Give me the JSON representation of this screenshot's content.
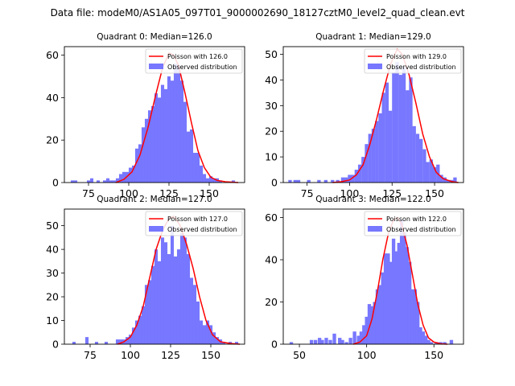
{
  "figure": {
    "suptitle": "Data file: modeM0/AS1A05_097T01_9000002690_18127cztM0_level2_quad_clean.evt"
  },
  "colors": {
    "hist": "#7777ff",
    "curve": "#ff0000",
    "axes": "#000000"
  },
  "legend": {
    "observed_label": "Observed distribution"
  },
  "chart_data": [
    {
      "type": "bar",
      "title": "Quadrant 0: Median=126.0",
      "median": 126.0,
      "poisson_label": "Poisson with 126.0",
      "xlim": [
        60,
        172
      ],
      "ylim": [
        0,
        64
      ],
      "xticks": [
        75,
        100,
        125,
        150
      ],
      "yticks": [
        0,
        20,
        40,
        60
      ],
      "bin_width": 2.05,
      "bins": [
        [
          65,
          1
        ],
        [
          67,
          1
        ],
        [
          75,
          1
        ],
        [
          77,
          2
        ],
        [
          81,
          1
        ],
        [
          85,
          1
        ],
        [
          87,
          2
        ],
        [
          89,
          1
        ],
        [
          91,
          1
        ],
        [
          93,
          2
        ],
        [
          95,
          4
        ],
        [
          97,
          5
        ],
        [
          99,
          5
        ],
        [
          101,
          7
        ],
        [
          103,
          8
        ],
        [
          105,
          16
        ],
        [
          107,
          18
        ],
        [
          109,
          26
        ],
        [
          111,
          30
        ],
        [
          113,
          34
        ],
        [
          115,
          36
        ],
        [
          117,
          42
        ],
        [
          119,
          40
        ],
        [
          121,
          46
        ],
        [
          123,
          44
        ],
        [
          125,
          50
        ],
        [
          127,
          48
        ],
        [
          129,
          56
        ],
        [
          131,
          55
        ],
        [
          133,
          48
        ],
        [
          135,
          38
        ],
        [
          137,
          24
        ],
        [
          139,
          25
        ],
        [
          141,
          14
        ],
        [
          143,
          14
        ],
        [
          145,
          8
        ],
        [
          147,
          4
        ],
        [
          149,
          2
        ],
        [
          151,
          3
        ],
        [
          153,
          2
        ],
        [
          155,
          2
        ],
        [
          157,
          1
        ],
        [
          165,
          1
        ]
      ],
      "curve": [
        [
          92,
          0
        ],
        [
          97,
          1.5
        ],
        [
          102,
          5
        ],
        [
          107,
          13
        ],
        [
          112,
          26
        ],
        [
          117,
          42
        ],
        [
          121,
          54
        ],
        [
          125,
          61
        ],
        [
          128,
          60
        ],
        [
          131,
          55
        ],
        [
          135,
          42
        ],
        [
          139,
          28
        ],
        [
          143,
          15
        ],
        [
          147,
          7
        ],
        [
          151,
          2.5
        ],
        [
          155,
          1
        ],
        [
          160,
          0.4
        ],
        [
          168,
          0
        ]
      ]
    },
    {
      "type": "bar",
      "title": "Quadrant 1: Median=129.0",
      "median": 129.0,
      "poisson_label": "Poisson with 129.0",
      "xlim": [
        61,
        167
      ],
      "ylim": [
        0,
        53
      ],
      "xticks": [
        75,
        100,
        125,
        150
      ],
      "yticks": [
        0,
        10,
        20,
        30,
        40,
        50
      ],
      "bin_width": 2.05,
      "bins": [
        [
          65,
          1
        ],
        [
          68,
          1
        ],
        [
          70,
          1
        ],
        [
          76,
          1
        ],
        [
          82,
          1
        ],
        [
          86,
          1
        ],
        [
          90,
          1
        ],
        [
          93,
          1
        ],
        [
          96,
          2
        ],
        [
          98,
          2
        ],
        [
          100,
          3
        ],
        [
          102,
          3
        ],
        [
          104,
          5
        ],
        [
          106,
          7
        ],
        [
          108,
          10
        ],
        [
          110,
          15
        ],
        [
          112,
          19
        ],
        [
          114,
          21
        ],
        [
          116,
          24
        ],
        [
          118,
          27
        ],
        [
          120,
          35
        ],
        [
          122,
          39
        ],
        [
          124,
          28
        ],
        [
          126,
          43
        ],
        [
          128,
          47
        ],
        [
          130,
          42
        ],
        [
          132,
          45
        ],
        [
          134,
          36
        ],
        [
          136,
          41
        ],
        [
          138,
          22
        ],
        [
          140,
          19
        ],
        [
          142,
          17
        ],
        [
          144,
          13
        ],
        [
          146,
          8
        ],
        [
          148,
          9
        ],
        [
          150,
          6
        ],
        [
          152,
          7
        ],
        [
          154,
          3
        ],
        [
          156,
          2
        ],
        [
          158,
          1
        ],
        [
          160,
          1
        ],
        [
          162,
          2
        ]
      ],
      "curve": [
        [
          90,
          0
        ],
        [
          95,
          0.3
        ],
        [
          100,
          1
        ],
        [
          104,
          3
        ],
        [
          108,
          7
        ],
        [
          112,
          15
        ],
        [
          116,
          25
        ],
        [
          120,
          36
        ],
        [
          124,
          46
        ],
        [
          128,
          52
        ],
        [
          131,
          50
        ],
        [
          135,
          42
        ],
        [
          139,
          31
        ],
        [
          143,
          19
        ],
        [
          147,
          10
        ],
        [
          151,
          4
        ],
        [
          155,
          1.5
        ],
        [
          160,
          0.4
        ],
        [
          164,
          0
        ]
      ]
    },
    {
      "type": "bar",
      "title": "Quadrant 2: Median=127.0",
      "median": 127.0,
      "poisson_label": "Poisson with 127.0",
      "xlim": [
        59,
        171
      ],
      "ylim": [
        0,
        57
      ],
      "xticks": [
        75,
        100,
        125,
        150
      ],
      "yticks": [
        0,
        10,
        20,
        30,
        40,
        50
      ],
      "bin_width": 2.05,
      "bins": [
        [
          65,
          1
        ],
        [
          73,
          3
        ],
        [
          79,
          1
        ],
        [
          85,
          1
        ],
        [
          92,
          2
        ],
        [
          94,
          2
        ],
        [
          96,
          2
        ],
        [
          98,
          3
        ],
        [
          100,
          4
        ],
        [
          102,
          7
        ],
        [
          104,
          10
        ],
        [
          106,
          12
        ],
        [
          108,
          16
        ],
        [
          110,
          25
        ],
        [
          112,
          27
        ],
        [
          114,
          33
        ],
        [
          116,
          40
        ],
        [
          118,
          35
        ],
        [
          120,
          45
        ],
        [
          122,
          43
        ],
        [
          124,
          38
        ],
        [
          126,
          50
        ],
        [
          128,
          37
        ],
        [
          130,
          40
        ],
        [
          132,
          47
        ],
        [
          134,
          45
        ],
        [
          136,
          38
        ],
        [
          138,
          28
        ],
        [
          140,
          25
        ],
        [
          142,
          18
        ],
        [
          144,
          10
        ],
        [
          146,
          8
        ],
        [
          148,
          10
        ],
        [
          150,
          8
        ],
        [
          152,
          5
        ],
        [
          154,
          3
        ],
        [
          156,
          2
        ],
        [
          158,
          1
        ],
        [
          162,
          1
        ],
        [
          166,
          1
        ]
      ],
      "curve": [
        [
          92,
          0
        ],
        [
          96,
          1
        ],
        [
          100,
          3
        ],
        [
          104,
          8
        ],
        [
          108,
          16
        ],
        [
          112,
          28
        ],
        [
          116,
          40
        ],
        [
          120,
          48
        ],
        [
          124,
          53
        ],
        [
          127,
          54
        ],
        [
          131,
          50
        ],
        [
          135,
          42
        ],
        [
          139,
          32
        ],
        [
          143,
          20
        ],
        [
          147,
          10
        ],
        [
          151,
          4
        ],
        [
          156,
          1
        ],
        [
          162,
          0.3
        ],
        [
          168,
          0
        ]
      ]
    },
    {
      "type": "bar",
      "title": "Quadrant 3: Median=122.0",
      "median": 122.0,
      "poisson_label": "Poisson with 122.0",
      "xlim": [
        38,
        172
      ],
      "ylim": [
        0,
        64
      ],
      "xticks": [
        50,
        100,
        150
      ],
      "yticks": [
        0,
        20,
        40,
        60
      ],
      "bin_width": 2.6,
      "bins": [
        [
          44,
          1
        ],
        [
          59,
          2
        ],
        [
          62,
          2
        ],
        [
          65,
          3
        ],
        [
          67,
          2
        ],
        [
          70,
          3
        ],
        [
          73,
          2
        ],
        [
          76,
          5
        ],
        [
          80,
          3
        ],
        [
          82,
          2
        ],
        [
          85,
          1
        ],
        [
          88,
          3
        ],
        [
          91,
          6
        ],
        [
          94,
          4
        ],
        [
          96,
          6
        ],
        [
          98,
          9
        ],
        [
          100,
          13
        ],
        [
          102,
          19
        ],
        [
          104,
          18
        ],
        [
          106,
          20
        ],
        [
          108,
          26
        ],
        [
          110,
          28
        ],
        [
          112,
          34
        ],
        [
          114,
          43
        ],
        [
          116,
          43
        ],
        [
          118,
          39
        ],
        [
          120,
          50
        ],
        [
          122,
          44
        ],
        [
          124,
          48
        ],
        [
          126,
          59
        ],
        [
          128,
          53
        ],
        [
          130,
          46
        ],
        [
          132,
          39
        ],
        [
          134,
          26
        ],
        [
          136,
          26
        ],
        [
          138,
          20
        ],
        [
          140,
          8
        ],
        [
          142,
          6
        ],
        [
          144,
          4
        ],
        [
          146,
          2
        ],
        [
          148,
          1
        ],
        [
          152,
          1
        ],
        [
          155,
          1
        ],
        [
          158,
          1
        ],
        [
          163,
          2
        ]
      ],
      "curve": [
        [
          90,
          0
        ],
        [
          95,
          1
        ],
        [
          100,
          4
        ],
        [
          104,
          12
        ],
        [
          108,
          25
        ],
        [
          112,
          40
        ],
        [
          116,
          52
        ],
        [
          120,
          59
        ],
        [
          123,
          60
        ],
        [
          126,
          57
        ],
        [
          130,
          47
        ],
        [
          134,
          33
        ],
        [
          138,
          19
        ],
        [
          142,
          9
        ],
        [
          146,
          3
        ],
        [
          150,
          1
        ],
        [
          155,
          0.2
        ],
        [
          160,
          0
        ]
      ]
    }
  ]
}
